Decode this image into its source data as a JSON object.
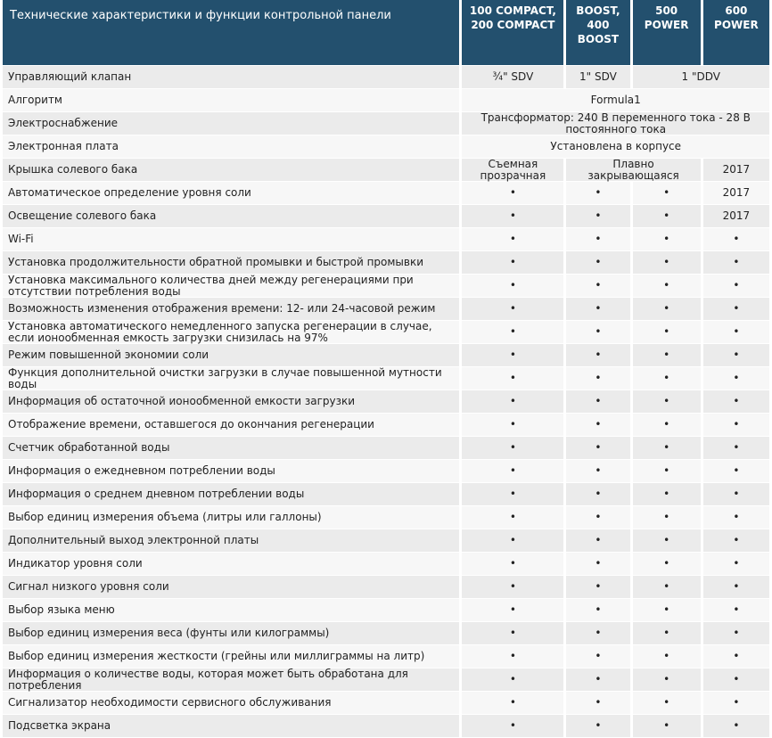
{
  "header": {
    "title": "Технические характеристики и функции контрольной панели",
    "columns": [
      "100 COMPACT, 200 COMPACT",
      "BOOST, 400 BOOST",
      "500 POWER",
      "600 POWER"
    ]
  },
  "rows": [
    [
      "Управляющий клапан",
      "¾\" SDV",
      "1\" SDV",
      {
        "text": "1 \"DDV",
        "span": 2
      }
    ],
    [
      "Алгоритм",
      {
        "text": "Formula1",
        "span": 4
      }
    ],
    [
      "Электроснабжение",
      {
        "text": "Трансформатор: 240 В переменного тока - 28 В постоянного тока",
        "span": 4
      }
    ],
    [
      "Электронная плата",
      {
        "text": "Установлена в корпусе",
        "span": 4
      }
    ],
    [
      "Крышка солевого бака",
      "Съемная прозрачная",
      {
        "text": "Плавно закрывающаяся",
        "span": 2
      },
      "2017"
    ],
    [
      "Автоматическое определение уровня соли",
      "•",
      "•",
      "•",
      "2017"
    ],
    [
      "Освещение солевого бака",
      "•",
      "•",
      "•",
      "2017"
    ],
    [
      "Wi-Fi",
      "•",
      "•",
      "•",
      "•"
    ],
    [
      "Установка продолжительности обратной промывки и быстрой промывки",
      "•",
      "•",
      "•",
      "•"
    ],
    [
      "Установка максимального количества дней между регенерациями при отсутствии потребления воды",
      "•",
      "•",
      "•",
      "•"
    ],
    [
      "Возможность изменения отображения времени: 12- или 24-часовой режим",
      "•",
      "•",
      "•",
      "•"
    ],
    [
      "Установка автоматического немедленного запуска регенерации в случае, если ионообменная емкость загрузки снизилась на 97%",
      "•",
      "•",
      "•",
      "•"
    ],
    [
      "Режим повышенной экономии соли",
      "•",
      "•",
      "•",
      "•"
    ],
    [
      "Функция дополнительной очистки загрузки в случае повышенной мутности воды",
      "•",
      "•",
      "•",
      "•"
    ],
    [
      "Информация об остаточной ионообменной емкости загрузки",
      "•",
      "•",
      "•",
      "•"
    ],
    [
      "Отображение времени, оставшегося до окончания регенерации",
      "•",
      "•",
      "•",
      "•"
    ],
    [
      "Счетчик обработанной воды",
      "•",
      "•",
      "•",
      "•"
    ],
    [
      "Информация о ежедневном потреблении воды",
      "•",
      "•",
      "•",
      "•"
    ],
    [
      "Информация о среднем дневном потреблении воды",
      "•",
      "•",
      "•",
      "•"
    ],
    [
      "Выбор единиц измерения объема (литры или галлоны)",
      "•",
      "•",
      "•",
      "•"
    ],
    [
      "Дополнительный выход электронной платы",
      "•",
      "•",
      "•",
      "•"
    ],
    [
      "Индикатор уровня соли",
      "•",
      "•",
      "•",
      "•"
    ],
    [
      "Сигнал низкого уровня соли",
      "•",
      "•",
      "•",
      "•"
    ],
    [
      "Выбор языка меню",
      "•",
      "•",
      "•",
      "•"
    ],
    [
      "Выбор единиц измерения веса (фунты или килограммы)",
      "•",
      "•",
      "•",
      "•"
    ],
    [
      "Выбор единиц измерения жесткости (грейны или миллиграммы на литр)",
      "•",
      "•",
      "•",
      "•"
    ],
    [
      "Информация о количестве воды, которая может быть обработана для потребления",
      "•",
      "•",
      "•",
      "•"
    ],
    [
      "Сигнализатор необходимости сервисного обслуживания",
      "•",
      "•",
      "•",
      "•"
    ],
    [
      "Подсветка экрана",
      "•",
      "•",
      "•",
      "•"
    ]
  ]
}
